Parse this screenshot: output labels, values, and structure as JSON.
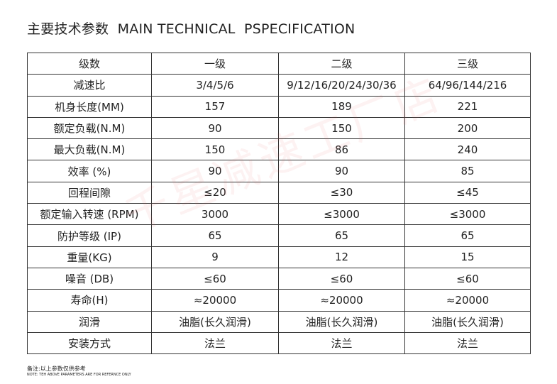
{
  "header": {
    "title": "主要技术参数  MAIN TECHNICAL  PSPECIFICATION"
  },
  "table": {
    "columns": [
      "级数",
      "一级",
      "二级",
      "三级"
    ],
    "rows": [
      [
        "减速比",
        "3/4/5/6",
        "9/12/16/20/24/30/36",
        "64/96/144/216"
      ],
      [
        "机身长度(MM)",
        "157",
        "189",
        "221"
      ],
      [
        "额定负载(N.M)",
        "90",
        "150",
        "200"
      ],
      [
        "最大负载(N.M)",
        "150",
        "86",
        "240"
      ],
      [
        "效率 (%)",
        "90",
        "90",
        "85"
      ],
      [
        "回程间隙",
        "≤20",
        "≤30",
        "≤45"
      ],
      [
        "额定输入转速 (RPM)",
        "3000",
        "≤3000",
        "≤3000"
      ],
      [
        "防护等级 (IP)",
        "65",
        "65",
        "65"
      ],
      [
        "重量(KG)",
        "9",
        "12",
        "15"
      ],
      [
        "噪音 (DB)",
        "≤60",
        "≤60",
        "≤60"
      ],
      [
        "寿命(H)",
        "≈20000",
        "≈20000",
        "≈20000"
      ],
      [
        "润滑",
        "油脂(长久润滑)",
        "油脂(长久润滑)",
        "油脂(长久润滑)"
      ],
      [
        "安装方式",
        "法兰",
        "法兰",
        "法兰"
      ]
    ]
  },
  "watermark": "千星减速工厂店",
  "footer": {
    "note_cn": "备注:以上参数仅供参考",
    "note_en": "NOTE: TEH ABOVE PARAMETERS ARE FOR REFERNCE ONLY"
  }
}
